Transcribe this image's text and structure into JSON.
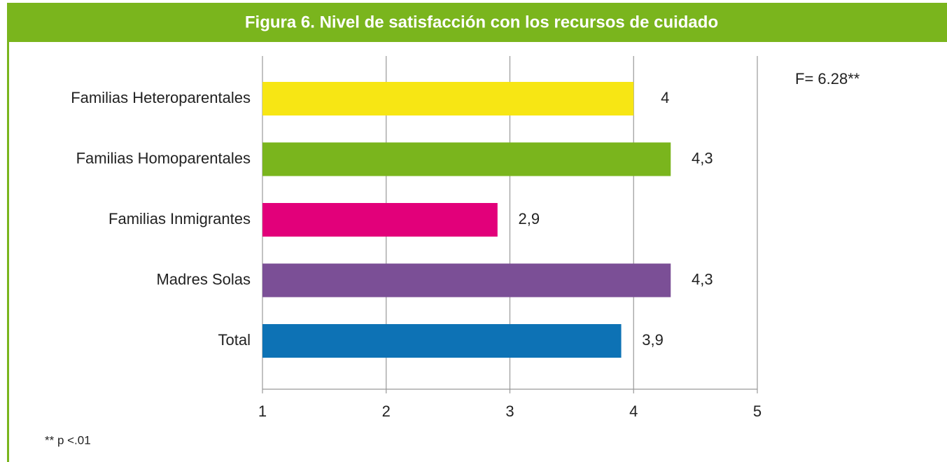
{
  "chart_data": {
    "type": "bar",
    "orientation": "horizontal",
    "title": "Figura 6. Nivel de satisfacción con los recursos de cuidado",
    "categories": [
      "Familias Heteroparentales",
      "Familias Homoparentales",
      "Familias Inmigrantes",
      "Madres Solas",
      "Total"
    ],
    "values": [
      4,
      4.3,
      2.9,
      4.3,
      3.9
    ],
    "value_labels": [
      "4",
      "4,3",
      "2,9",
      "4,3",
      "3,9"
    ],
    "colors": [
      "#f7e614",
      "#7ab51d",
      "#e2007a",
      "#7b4f96",
      "#0d72b5"
    ],
    "xlim": [
      1,
      5
    ],
    "xticks": [
      1,
      2,
      3,
      4,
      5
    ],
    "grid": true,
    "annotations": [
      "F= 6.28**",
      "** p <.01"
    ]
  }
}
